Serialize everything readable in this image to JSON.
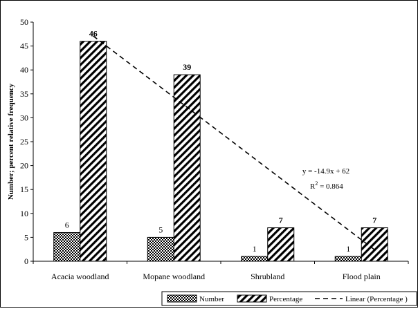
{
  "chart_data": {
    "type": "bar",
    "categories": [
      "Acacia woodland",
      "Mopane woodland",
      "Shrubland",
      "Flood plain"
    ],
    "series": [
      {
        "name": "Number",
        "values": [
          6,
          5,
          1,
          1
        ],
        "pattern": "dots"
      },
      {
        "name": "Percentage",
        "values": [
          46,
          39,
          7,
          7
        ],
        "pattern": "diagonal-stripes"
      }
    ],
    "trendline": {
      "name": "Linear (Percentage )",
      "series": "Percentage",
      "slope": -14.9,
      "intercept": 62,
      "equation": "y = -14.9x + 62",
      "r2_prefix": "R",
      "r2_superscript": "2",
      "r2_value": " = 0.864",
      "style": "dashed"
    },
    "xlabel": "",
    "ylabel": "Number; percent relative frequency",
    "ylim": [
      0,
      50
    ],
    "yticks": [
      0,
      5,
      10,
      15,
      20,
      25,
      30,
      35,
      40,
      45,
      50
    ],
    "grid": false,
    "legend_position": "bottom-right",
    "colors": {
      "bars": "#000000",
      "background": "#ffffff",
      "frame": "#000000"
    }
  }
}
